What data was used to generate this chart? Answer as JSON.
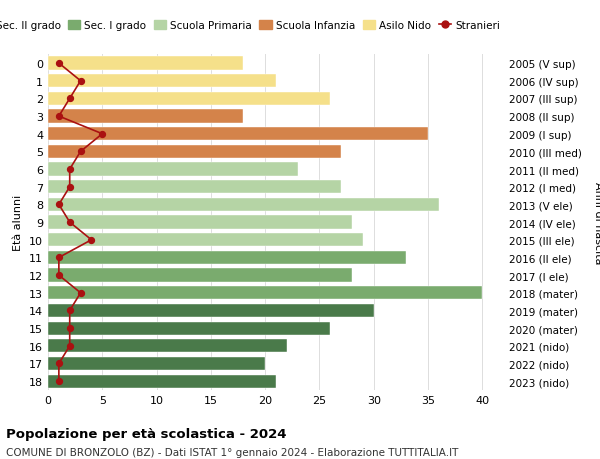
{
  "ages": [
    0,
    1,
    2,
    3,
    4,
    5,
    6,
    7,
    8,
    9,
    10,
    11,
    12,
    13,
    14,
    15,
    16,
    17,
    18
  ],
  "years": [
    "2023 (nido)",
    "2022 (nido)",
    "2021 (nido)",
    "2020 (mater)",
    "2019 (mater)",
    "2018 (mater)",
    "2017 (I ele)",
    "2016 (II ele)",
    "2015 (III ele)",
    "2014 (IV ele)",
    "2013 (V ele)",
    "2012 (I med)",
    "2011 (II med)",
    "2010 (III med)",
    "2009 (I sup)",
    "2008 (II sup)",
    "2007 (III sup)",
    "2006 (IV sup)",
    "2005 (V sup)"
  ],
  "bar_values": [
    18,
    21,
    26,
    18,
    35,
    27,
    23,
    27,
    36,
    28,
    29,
    33,
    28,
    40,
    30,
    26,
    22,
    20,
    21
  ],
  "stranieri_values": [
    1,
    3,
    2,
    1,
    5,
    3,
    2,
    2,
    1,
    2,
    4,
    1,
    1,
    3,
    2,
    2,
    2,
    1,
    1
  ],
  "bar_colors": [
    "#f5e08a",
    "#f5e08a",
    "#f5e08a",
    "#d4834a",
    "#d4834a",
    "#d4834a",
    "#b5d4a5",
    "#b5d4a5",
    "#b5d4a5",
    "#b5d4a5",
    "#b5d4a5",
    "#7aab6e",
    "#7aab6e",
    "#7aab6e",
    "#4a7a4a",
    "#4a7a4a",
    "#4a7a4a",
    "#4a7a4a",
    "#4a7a4a"
  ],
  "legend_labels": [
    "Sec. II grado",
    "Sec. I grado",
    "Scuola Primaria",
    "Scuola Infanzia",
    "Asilo Nido",
    "Stranieri"
  ],
  "legend_colors_list": [
    "#4a7a4a",
    "#7aab6e",
    "#b5d4a5",
    "#d4834a",
    "#f5e08a",
    "#aa1111"
  ],
  "stranieri_color": "#aa1111",
  "title_bold": "Popolazione per età scolastica - 2024",
  "subtitle": "COMUNE DI BRONZOLO (BZ) - Dati ISTAT 1° gennaio 2024 - Elaborazione TUTTITALIA.IT",
  "ylabel_left": "Età alunni",
  "ylabel_right": "Anni di nascita",
  "xlim": [
    0,
    42
  ],
  "bg_color": "#ffffff",
  "grid_color": "#dddddd",
  "bar_height": 0.75
}
